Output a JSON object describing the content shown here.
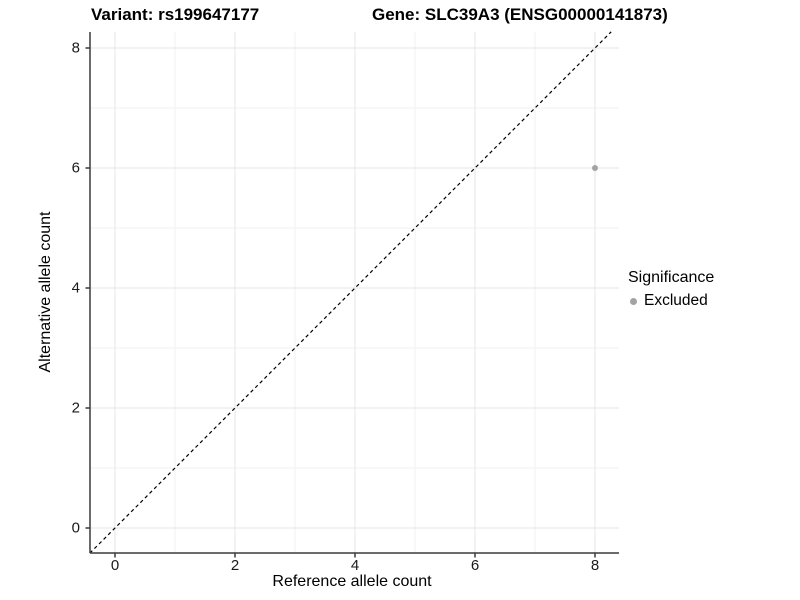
{
  "figure": {
    "title_left": "Variant: rs199647177",
    "title_right": "Gene: SLC39A3 (ENSG00000141873)"
  },
  "axes": {
    "x_title": "Reference allele count",
    "y_title": "Alternative allele count"
  },
  "legend": {
    "title": "Significance",
    "items": [
      {
        "label": "Excluded",
        "color": "#a3a3a3"
      }
    ]
  },
  "colors": {
    "axis_line": "#3a3a3a",
    "tick_mark": "#3a3a3a",
    "grid_major": "#e5e5e5",
    "grid_minor": "#f2f2f2",
    "identity_line": "#000000",
    "point": "#a3a3a3",
    "text": "#000000"
  },
  "chart_data": {
    "type": "scatter",
    "title": "Variant: rs199647177 / Gene: SLC39A3 (ENSG00000141873)",
    "xlabel": "Reference allele count",
    "ylabel": "Alternative allele count",
    "x_ticks": [
      0,
      2,
      4,
      6,
      8
    ],
    "y_ticks": [
      0,
      2,
      4,
      6,
      8
    ],
    "xlim": [
      -0.42,
      8.4
    ],
    "ylim": [
      -0.42,
      8.27
    ],
    "grid": "major gridlines at even integers, minor gridlines at odd integers",
    "legend_position": "right",
    "series": [
      {
        "name": "Excluded",
        "color": "#a3a3a3",
        "points": [
          {
            "x": 8,
            "y": 6
          }
        ]
      }
    ],
    "annotations": [
      {
        "type": "identity-line",
        "equation": "y = x",
        "style": "dashed",
        "color": "#000000"
      }
    ]
  }
}
